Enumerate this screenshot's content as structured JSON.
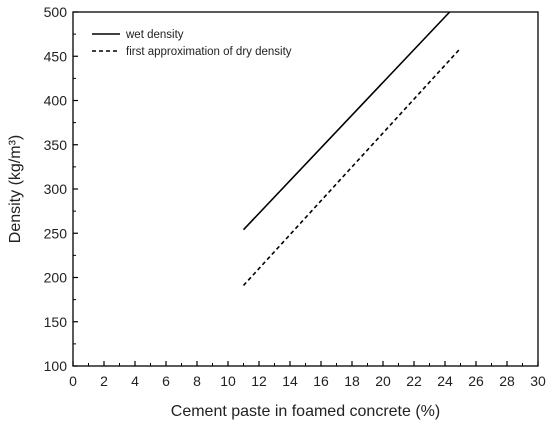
{
  "chart_data": {
    "type": "line",
    "xlabel": "Cement paste in foamed concrete (%)",
    "ylabel": "Density (kg/m³)",
    "xlim": [
      0,
      30
    ],
    "ylim": [
      100,
      500
    ],
    "xticks": [
      0,
      2,
      4,
      6,
      8,
      10,
      12,
      14,
      16,
      18,
      20,
      22,
      24,
      26,
      28,
      30
    ],
    "yticks": [
      100,
      150,
      200,
      250,
      300,
      350,
      400,
      450,
      500
    ],
    "grid": false,
    "legend_position": "top-left",
    "series": [
      {
        "name": "wet density",
        "style": "solid",
        "color": "#000000",
        "x": [
          11,
          24.3
        ],
        "y": [
          254,
          500
        ]
      },
      {
        "name": "first approximation of dry density",
        "style": "dashed",
        "color": "#000000",
        "x": [
          11,
          25
        ],
        "y": [
          191,
          459
        ]
      }
    ]
  }
}
